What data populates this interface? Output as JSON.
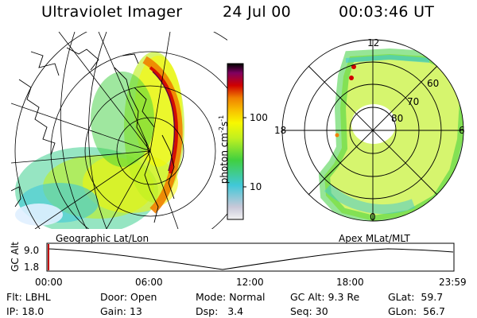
{
  "header": {
    "title": "Ultraviolet Imager",
    "date": "24 Jul 00",
    "time": "00:03:46 UT"
  },
  "left_panel": {
    "caption": "Geographic Lat/Lon"
  },
  "right_panel": {
    "caption": "Apex MLat/MLT",
    "mlt_labels": [
      "12",
      "18",
      "6",
      "0"
    ],
    "mlat_labels": [
      "60",
      "70",
      "80"
    ]
  },
  "colorbar": {
    "unit_label": "photon cm",
    "unit_sup1": "-2",
    "unit_s": "s",
    "unit_sup2": "-1",
    "ticks": [
      "100",
      "10"
    ],
    "scale": "log"
  },
  "timeline": {
    "ylabel": "GC Alt",
    "yticks": [
      "9.0",
      "1.8"
    ],
    "xticks": [
      "00:00",
      "06:00",
      "12:00",
      "18:00",
      "23:59"
    ],
    "current_time": "00:03:46"
  },
  "info": {
    "flt": {
      "label": "Flt:",
      "value": "LBHL"
    },
    "ip": {
      "label": "IP:",
      "value": "18.0"
    },
    "door": {
      "label": "Door:",
      "value": "Open"
    },
    "gain": {
      "label": "Gain:",
      "value": "13"
    },
    "mode": {
      "label": "Mode:",
      "value": "Normal"
    },
    "dsp": {
      "label": "Dsp:",
      "value": "3.4"
    },
    "gcalt": {
      "label": "GC Alt:",
      "value": "9.3 Re"
    },
    "seq": {
      "label": "Seq:",
      "value": "30"
    },
    "glat": {
      "label": "GLat:",
      "value": "59.7"
    },
    "glon": {
      "label": "GLon:",
      "value": "56.7"
    }
  },
  "colors": {
    "background": "#ffffff",
    "scale": [
      "#f2f2f2",
      "#c8c8d8",
      "#40c8d8",
      "#40d040",
      "#c0f020",
      "#f8f800",
      "#f8c000",
      "#f08000",
      "#d00000",
      "#800060",
      "#000000"
    ]
  }
}
